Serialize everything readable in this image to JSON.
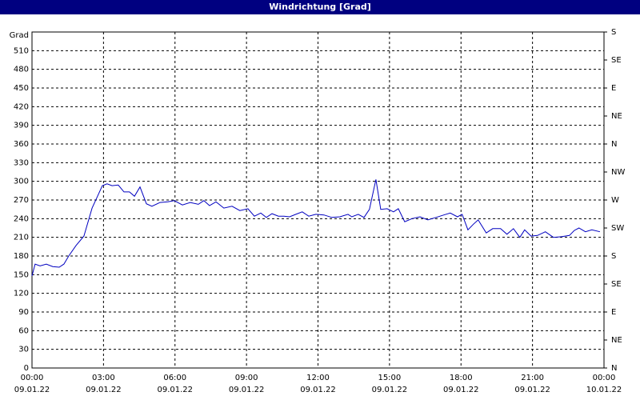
{
  "chart_data": {
    "type": "line",
    "title": "Windrichtung [Grad]",
    "y_label": "Grad",
    "color": "#0000c0",
    "grid": true,
    "xlim": [
      0,
      24
    ],
    "ylim": [
      0,
      540
    ],
    "y2lim": [
      0,
      540
    ],
    "xticks": [
      {
        "value": 0,
        "label": "00:00 09.01.22"
      },
      {
        "value": 3,
        "label": "03:00 09.01.22"
      },
      {
        "value": 6,
        "label": "06:00 09.01.22"
      },
      {
        "value": 9,
        "label": "09:00 09.01.22"
      },
      {
        "value": 12,
        "label": "12:00 09.01.22"
      },
      {
        "value": 15,
        "label": "15:00 09.01.22"
      },
      {
        "value": 18,
        "label": "18:00 09.01.22"
      },
      {
        "value": 21,
        "label": "21:00 09.01.22"
      },
      {
        "value": 24,
        "label": "00:00 10.01.22"
      }
    ],
    "yticks": [
      0,
      30,
      60,
      90,
      120,
      150,
      180,
      210,
      240,
      270,
      300,
      330,
      360,
      390,
      420,
      450,
      480,
      510
    ],
    "y2ticks": [
      {
        "value": 0,
        "label": "N"
      },
      {
        "value": 45,
        "label": "NE"
      },
      {
        "value": 90,
        "label": "E"
      },
      {
        "value": 135,
        "label": "SE"
      },
      {
        "value": 180,
        "label": "S"
      },
      {
        "value": 225,
        "label": "SW"
      },
      {
        "value": 270,
        "label": "W"
      },
      {
        "value": 315,
        "label": "NW"
      },
      {
        "value": 360,
        "label": "N"
      },
      {
        "value": 405,
        "label": "NE"
      },
      {
        "value": 450,
        "label": "E"
      },
      {
        "value": 495,
        "label": "SE"
      },
      {
        "value": 540,
        "label": "S"
      }
    ],
    "x": [
      0,
      0.13,
      0.34,
      0.6,
      0.87,
      1.14,
      1.34,
      1.54,
      1.85,
      2.18,
      2.52,
      2.75,
      2.95,
      3.15,
      3.36,
      3.62,
      3.86,
      4.09,
      4.3,
      4.53,
      4.8,
      5.03,
      5.37,
      5.7,
      5.97,
      6.31,
      6.64,
      6.98,
      7.21,
      7.45,
      7.72,
      8.05,
      8.39,
      8.72,
      9.06,
      9.33,
      9.6,
      9.83,
      10.07,
      10.34,
      10.57,
      10.81,
      11.07,
      11.34,
      11.61,
      11.91,
      12.25,
      12.58,
      12.92,
      13.26,
      13.42,
      13.69,
      13.93,
      14.16,
      14.43,
      14.63,
      14.9,
      15.17,
      15.37,
      15.64,
      15.94,
      16.28,
      16.61,
      16.95,
      17.28,
      17.55,
      17.85,
      18.05,
      18.29,
      18.52,
      18.72,
      19.06,
      19.33,
      19.66,
      19.93,
      20.2,
      20.47,
      20.67,
      20.94,
      21.21,
      21.54,
      21.88,
      22.21,
      22.55,
      22.75,
      22.95,
      23.22,
      23.49,
      23.83
    ],
    "values": [
      148,
      167,
      164,
      167,
      163,
      162,
      167,
      180,
      197,
      212,
      257,
      276,
      293,
      296,
      293,
      294,
      283,
      283,
      276,
      291,
      264,
      260,
      266,
      267,
      269,
      262,
      266,
      263,
      269,
      261,
      267,
      257,
      260,
      253,
      256,
      244,
      249,
      242,
      248,
      244,
      244,
      243,
      247,
      251,
      244,
      247,
      246,
      242,
      243,
      247,
      243,
      247,
      242,
      255,
      303,
      255,
      256,
      251,
      256,
      235,
      240,
      243,
      238,
      242,
      246,
      249,
      243,
      247,
      222,
      231,
      238,
      217,
      224,
      224,
      215,
      224,
      210,
      222,
      212,
      213,
      219,
      210,
      211,
      213,
      221,
      225,
      219,
      222,
      219
    ]
  }
}
